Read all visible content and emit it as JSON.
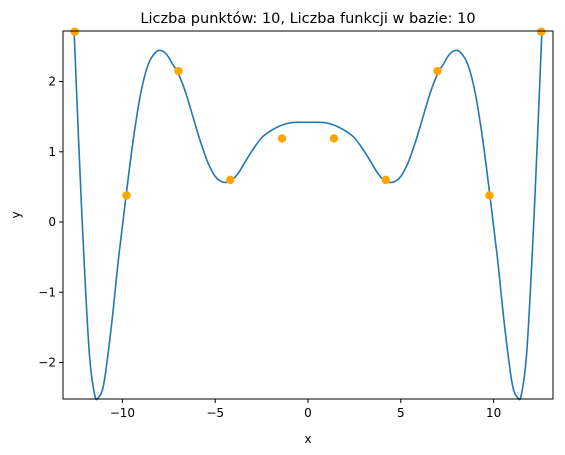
{
  "chart_data": {
    "type": "line",
    "title": "Liczba punktów: 10, Liczba funkcji w bazie: 10",
    "xlabel": "x",
    "ylabel": "y",
    "xlim": [
      -13.2,
      13.2
    ],
    "ylim": [
      -2.52,
      2.72
    ],
    "x_ticks": [
      -10,
      -5,
      0,
      5,
      10
    ],
    "x_tick_labels": [
      "−10",
      "−5",
      "0",
      "5",
      "10"
    ],
    "y_ticks": [
      -2,
      -1,
      0,
      1,
      2
    ],
    "y_tick_labels": [
      "−2",
      "−1",
      "0",
      "1",
      "2"
    ],
    "grid": false,
    "series": [
      {
        "kind": "line",
        "color": "#1f77b4",
        "x": [
          -12.6,
          -12.2,
          -11.8,
          -11.5,
          -11.3,
          -11.0,
          -10.6,
          -10.2,
          -9.8,
          -9.4,
          -9.0,
          -8.6,
          -8.2,
          -7.9,
          -7.6,
          -7.3,
          -7.0,
          -6.6,
          -6.2,
          -5.8,
          -5.4,
          -5.0,
          -4.6,
          -4.2,
          -3.8,
          -3.4,
          -3.0,
          -2.5,
          -2.0,
          -1.5,
          -1.0,
          -0.5,
          0.0,
          0.5,
          1.0,
          1.5,
          2.0,
          2.5,
          3.0,
          3.4,
          3.8,
          4.2,
          4.6,
          5.0,
          5.4,
          5.8,
          6.2,
          6.6,
          7.0,
          7.3,
          7.6,
          7.9,
          8.2,
          8.6,
          9.0,
          9.4,
          9.8,
          10.2,
          10.6,
          11.0,
          11.3,
          11.5,
          11.8,
          12.2,
          12.6
        ],
        "y": [
          2.7,
          0.2,
          -1.8,
          -2.45,
          -2.5,
          -2.3,
          -1.5,
          -0.5,
          0.38,
          1.2,
          1.85,
          2.25,
          2.42,
          2.44,
          2.38,
          2.25,
          2.12,
          1.85,
          1.5,
          1.15,
          0.85,
          0.65,
          0.57,
          0.58,
          0.68,
          0.85,
          1.02,
          1.2,
          1.3,
          1.37,
          1.41,
          1.42,
          1.42,
          1.42,
          1.41,
          1.37,
          1.3,
          1.2,
          1.02,
          0.85,
          0.68,
          0.58,
          0.57,
          0.65,
          0.85,
          1.15,
          1.5,
          1.85,
          2.12,
          2.25,
          2.38,
          2.44,
          2.42,
          2.25,
          1.85,
          1.2,
          0.38,
          -0.5,
          -1.5,
          -2.3,
          -2.5,
          -2.45,
          -1.8,
          0.2,
          2.7
        ]
      },
      {
        "kind": "scatter",
        "color": "#ffa500",
        "x": [
          -12.57,
          -9.78,
          -6.98,
          -4.19,
          -1.4,
          1.4,
          4.19,
          6.98,
          9.78,
          12.57
        ],
        "y": [
          2.71,
          0.38,
          2.15,
          0.6,
          1.19,
          1.19,
          0.6,
          2.15,
          0.38,
          2.71
        ]
      }
    ]
  }
}
